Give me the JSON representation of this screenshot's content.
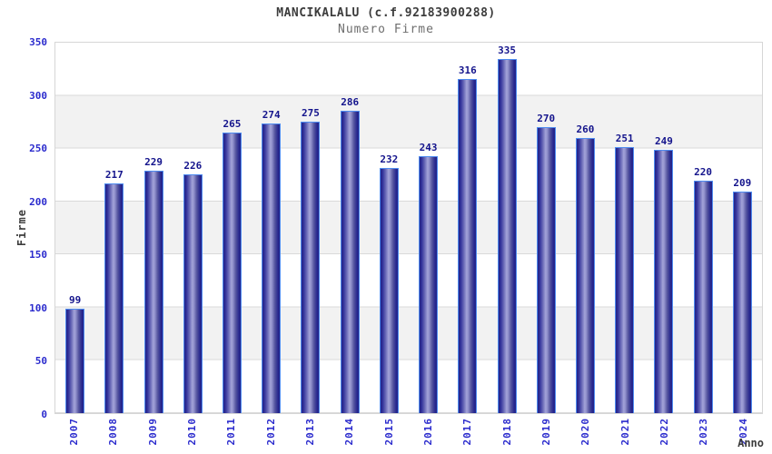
{
  "chart_data": {
    "type": "bar",
    "title": "MANCIKALALU (c.f.92183900288)",
    "subtitle": "Numero Firme",
    "xlabel": "Anno",
    "ylabel": "Firme",
    "categories": [
      "2007",
      "2008",
      "2009",
      "2010",
      "2011",
      "2012",
      "2013",
      "2014",
      "2015",
      "2016",
      "2017",
      "2018",
      "2019",
      "2020",
      "2021",
      "2022",
      "2023",
      "2024"
    ],
    "values": [
      99,
      217,
      229,
      226,
      265,
      274,
      275,
      286,
      232,
      243,
      316,
      335,
      270,
      260,
      251,
      249,
      220,
      209
    ],
    "ylim": [
      0,
      350
    ],
    "ytick_step": 50,
    "yticks": [
      0,
      50,
      100,
      150,
      200,
      250,
      300,
      350
    ],
    "grid": true,
    "legend": "none",
    "band_colors": [
      "#ffffff",
      "#f2f2f2"
    ],
    "colors": {
      "tick_label": "#2b2bcd",
      "value_label": "#14148c",
      "title": "#3c3c3c",
      "subtitle": "#6e6e6e",
      "bar_dark": "#222287",
      "bar_light": "#a2a2d8",
      "bar_border": "#4f8cf0",
      "grid_line": "#dadada",
      "plot_border": "#d6d6d6"
    }
  }
}
